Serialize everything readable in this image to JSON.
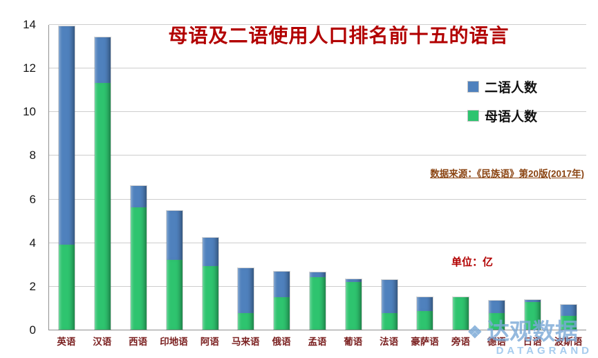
{
  "title": "母语及二语使用人口排名前十五的语言",
  "legend": {
    "second_language": "二语人数",
    "native_language": "母语人数"
  },
  "source_note": "数据来源：《民族语》第20版(2017年)",
  "unit_note": "单位：亿",
  "watermark": {
    "cn": "达观数据",
    "en": "DATAGRAND"
  },
  "colors": {
    "second_language_blue": "#4f81bd",
    "native_language_green": "#2ec46f",
    "title_red": "#b20000",
    "x_label_maroon": "#7a1f1f",
    "source_note_brown": "#8b4513",
    "watermark_blue": "#9ec6e8",
    "gridline_gray": "#cdcdcd"
  },
  "chart_data": {
    "type": "bar",
    "stacked": true,
    "title": "母语及二语使用人口排名前十五的语言",
    "unit": "亿",
    "categories": [
      "英语",
      "汉语",
      "西语",
      "印地语",
      "阿语",
      "马来语",
      "俄语",
      "孟语",
      "葡语",
      "法语",
      "豪萨语",
      "旁语",
      "德语",
      "日语",
      "波斯语"
    ],
    "series": [
      {
        "name": "母语人数",
        "color": "#2ec46f",
        "values": [
          3.9,
          11.3,
          5.6,
          3.2,
          2.9,
          0.77,
          1.5,
          2.42,
          2.2,
          0.76,
          0.85,
          1.48,
          0.76,
          1.28,
          0.62
        ]
      },
      {
        "name": "二语人数",
        "color": "#4f81bd",
        "values": [
          10.0,
          2.1,
          1.0,
          2.25,
          1.3,
          2.04,
          1.15,
          0.2,
          0.1,
          1.53,
          0.65,
          0.02,
          0.56,
          0.07,
          0.53
        ]
      }
    ],
    "totals": [
      13.9,
      13.4,
      6.6,
      5.45,
      4.2,
      2.81,
      2.65,
      2.62,
      2.3,
      2.29,
      1.5,
      1.5,
      1.32,
      1.35,
      1.15
    ],
    "xlabel": "",
    "ylabel": "",
    "ylim": [
      0,
      14
    ],
    "yticks": [
      0,
      2,
      4,
      6,
      8,
      10,
      12,
      14
    ],
    "grid": true,
    "legend_position": "upper-right"
  }
}
